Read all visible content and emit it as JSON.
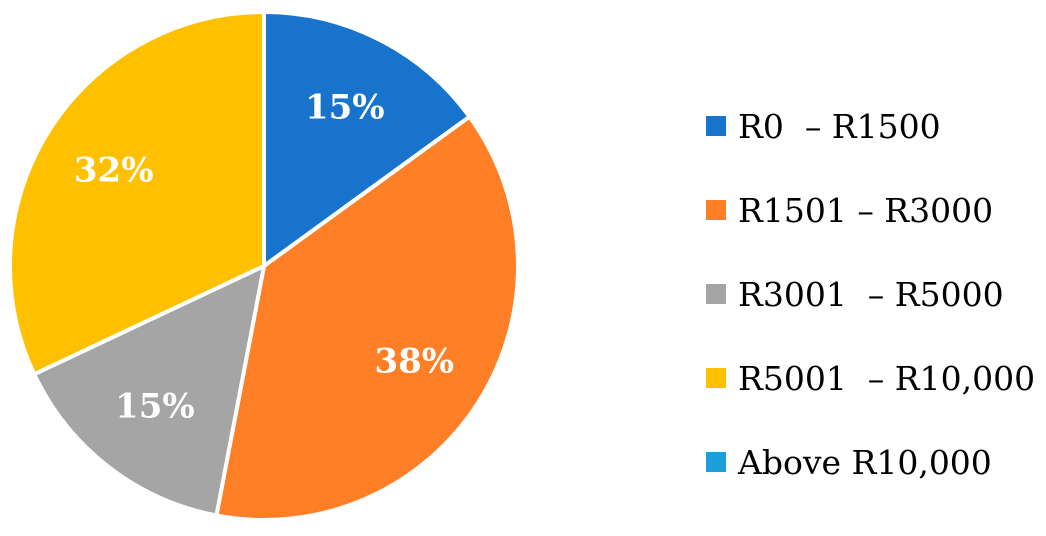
{
  "chart_data": {
    "type": "pie",
    "start_angle_deg": 0,
    "direction": "clockwise",
    "slices": [
      {
        "category": "R0  – R1500",
        "value": 15,
        "label": "15%",
        "color": "#1873CC"
      },
      {
        "category": "R1501 – R3000",
        "value": 38,
        "label": "38%",
        "color": "#FF7F27"
      },
      {
        "category": "R3001  – R5000",
        "value": 15,
        "label": "15%",
        "color": "#A5A5A5"
      },
      {
        "category": "R5001  – R10,000",
        "value": 32,
        "label": "32%",
        "color": "#FFC000"
      },
      {
        "category": "Above R10,000",
        "value": 0,
        "label": "",
        "color": "#1E9FD9"
      }
    ],
    "legend_position": "right",
    "title": ""
  }
}
